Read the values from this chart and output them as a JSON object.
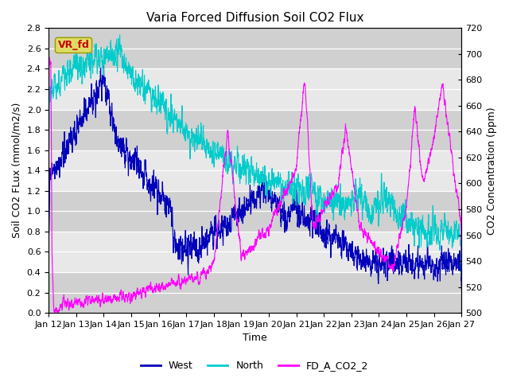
{
  "title": "Varia Forced Diffusion Soil CO2 Flux",
  "ylabel_left": "Soil CO2 FLux (mmol/m2/s)",
  "ylabel_right": "CO2 Concentration (ppm)",
  "xlabel": "Time",
  "ylim_left": [
    0.0,
    2.8
  ],
  "ylim_right": [
    500,
    720
  ],
  "x_ticks": [
    "Jan 12",
    "Jan 13",
    "Jan 14",
    "Jan 15",
    "Jan 16",
    "Jan 17",
    "Jan 18",
    "Jan 19",
    "Jan 20",
    "Jan 21",
    "Jan 22",
    "Jan 23",
    "Jan 24",
    "Jan 25",
    "Jan 26",
    "Jan 27"
  ],
  "color_west": "#0000BB",
  "color_north": "#00CCCC",
  "color_co2": "#FF00FF",
  "legend_labels": [
    "West",
    "North",
    "FD_A_CO2_2"
  ],
  "vr_fd_label": "VR_fd",
  "vr_fd_bg": "#DDDD66",
  "vr_fd_text_color": "#CC0000",
  "plot_bg": "#DCDCDC",
  "stripe_light": "#E8E8E8",
  "stripe_dark": "#D0D0D0",
  "fig_bg": "#FFFFFF",
  "grid_color": "#FFFFFF",
  "title_fontsize": 11,
  "label_fontsize": 9,
  "tick_fontsize": 8,
  "line_width": 0.8,
  "n_points": 3600,
  "seed": 42
}
